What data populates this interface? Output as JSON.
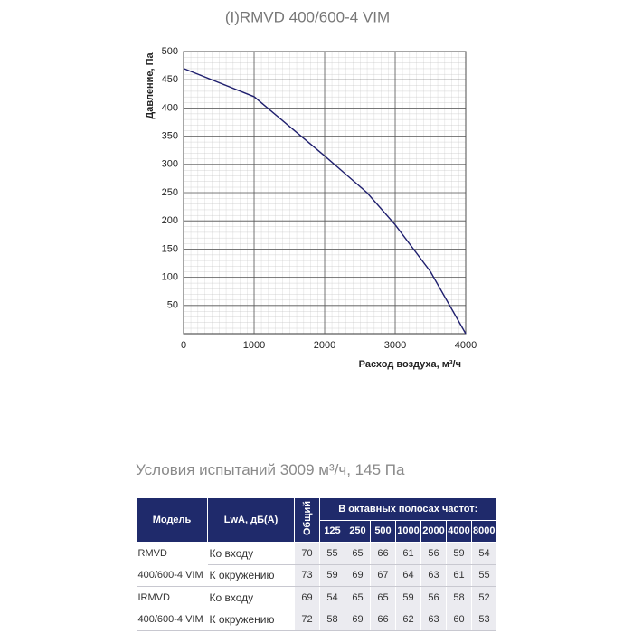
{
  "chart_data": {
    "type": "line",
    "title": "(I)RMVD 400/600-4 VIM",
    "x_label": "Расход воздуха, м³/ч",
    "y_label": "Давление, Па",
    "x": [
      0,
      1000,
      2000,
      2600,
      3000,
      3500,
      4000
    ],
    "values": [
      470,
      420,
      315,
      250,
      193,
      110,
      0
    ],
    "color": "#1f1f6e",
    "xlim": [
      0,
      4000
    ],
    "ylim": [
      0,
      500
    ],
    "xticks": [
      0,
      1000,
      2000,
      3000,
      4000
    ],
    "yticks": [
      50,
      100,
      150,
      200,
      250,
      300,
      350,
      400,
      450,
      500
    ],
    "grid": true
  },
  "subtitle": "Условия испытаний 3009 м³/ч, 145 Па",
  "table": {
    "header": {
      "model": "Модель",
      "lwa": "LwA, дБ(A)",
      "total": "Общий",
      "octave": "В октавных полосах частот:"
    },
    "bands": [
      "125",
      "250",
      "500",
      "1000",
      "2000",
      "4000",
      "8000"
    ],
    "rows": [
      {
        "model": "RMVD 400/600-4 VIM",
        "lines": [
          {
            "label": "Ко входу",
            "total": "70",
            "bands": [
              "55",
              "65",
              "66",
              "61",
              "56",
              "59",
              "54"
            ]
          },
          {
            "label": "К окружению",
            "total": "73",
            "bands": [
              "59",
              "69",
              "67",
              "64",
              "63",
              "61",
              "55"
            ]
          }
        ]
      },
      {
        "model": "IRMVD 400/600-4 VIM",
        "lines": [
          {
            "label": "Ко входу",
            "total": "69",
            "bands": [
              "54",
              "65",
              "65",
              "59",
              "56",
              "58",
              "52"
            ]
          },
          {
            "label": "К окружению",
            "total": "72",
            "bands": [
              "58",
              "69",
              "66",
              "62",
              "63",
              "60",
              "53"
            ]
          }
        ]
      }
    ]
  }
}
